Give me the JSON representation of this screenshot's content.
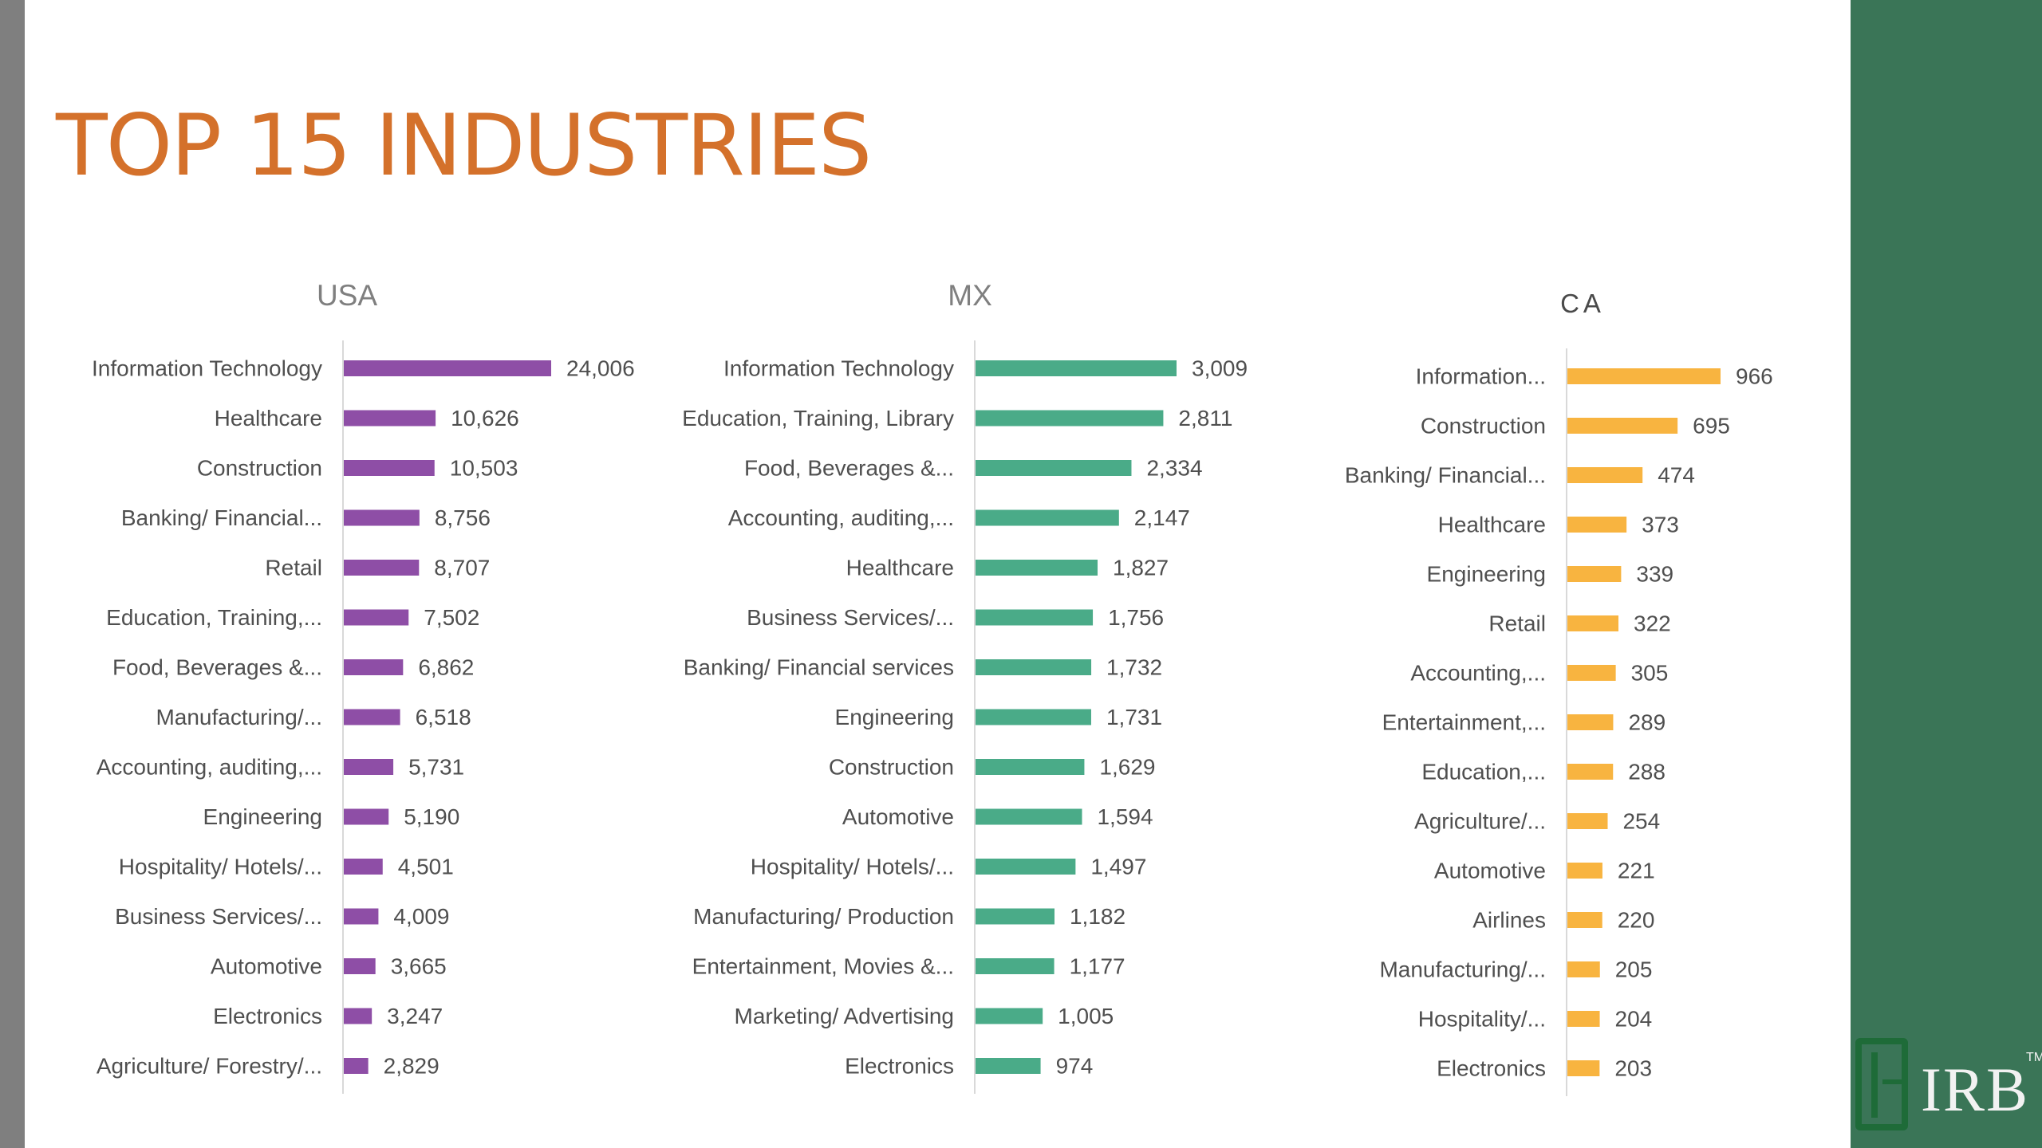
{
  "page": {
    "title": "TOP 15 INDUSTRIES",
    "logo_text": "IRB",
    "logo_tm": "TM"
  },
  "colors": {
    "title": "#d4712b",
    "usa": "#8e4ea6",
    "mx": "#4aab88",
    "ca": "#f8b440",
    "side_panel": "#3a7557"
  },
  "chart_data": [
    {
      "type": "bar",
      "orientation": "horizontal",
      "title": "USA",
      "categories": [
        "Information Technology",
        "Healthcare",
        "Construction",
        "Banking/ Financial...",
        "Retail",
        "Education, Training,...",
        "Food, Beverages &...",
        "Manufacturing/...",
        "Accounting, auditing,...",
        "Engineering",
        "Hospitality/ Hotels/...",
        "Business Services/...",
        "Automotive",
        "Electronics",
        "Agriculture/ Forestry/..."
      ],
      "values": [
        24006,
        10626,
        10503,
        8756,
        8707,
        7502,
        6862,
        6518,
        5731,
        5190,
        4501,
        4009,
        3665,
        3247,
        2829
      ],
      "value_labels": [
        "24,006",
        "10,626",
        "10,503",
        "8,756",
        "8,707",
        "7,502",
        "6,862",
        "6,518",
        "5,731",
        "5,190",
        "4,501",
        "4,009",
        "3,665",
        "3,247",
        "2,829"
      ],
      "color": "#8e4ea6"
    },
    {
      "type": "bar",
      "orientation": "horizontal",
      "title": "MX",
      "categories": [
        "Information Technology",
        "Education, Training, Library",
        "Food, Beverages &...",
        "Accounting, auditing,...",
        "Healthcare",
        "Business Services/...",
        "Banking/ Financial services",
        "Engineering",
        "Construction",
        "Automotive",
        "Hospitality/ Hotels/...",
        "Manufacturing/ Production",
        "Entertainment, Movies &...",
        "Marketing/ Advertising",
        "Electronics"
      ],
      "values": [
        3009,
        2811,
        2334,
        2147,
        1827,
        1756,
        1732,
        1731,
        1629,
        1594,
        1497,
        1182,
        1177,
        1005,
        974
      ],
      "value_labels": [
        "3,009",
        "2,811",
        "2,334",
        "2,147",
        "1,827",
        "1,756",
        "1,732",
        "1,731",
        "1,629",
        "1,594",
        "1,497",
        "1,182",
        "1,177",
        "1,005",
        "974"
      ],
      "color": "#4aab88"
    },
    {
      "type": "bar",
      "orientation": "horizontal",
      "title": "CA",
      "categories": [
        "Information...",
        "Construction",
        "Banking/ Financial...",
        "Healthcare",
        "Engineering",
        "Retail",
        "Accounting,...",
        "Entertainment,...",
        "Education,...",
        "Agriculture/...",
        "Automotive",
        "Airlines",
        "Manufacturing/...",
        "Hospitality/...",
        "Electronics"
      ],
      "values": [
        966,
        695,
        474,
        373,
        339,
        322,
        305,
        289,
        288,
        254,
        221,
        220,
        205,
        204,
        203
      ],
      "value_labels": [
        "966",
        "695",
        "474",
        "373",
        "339",
        "322",
        "305",
        "289",
        "288",
        "254",
        "221",
        "220",
        "205",
        "204",
        "203"
      ],
      "color": "#f8b440"
    }
  ]
}
